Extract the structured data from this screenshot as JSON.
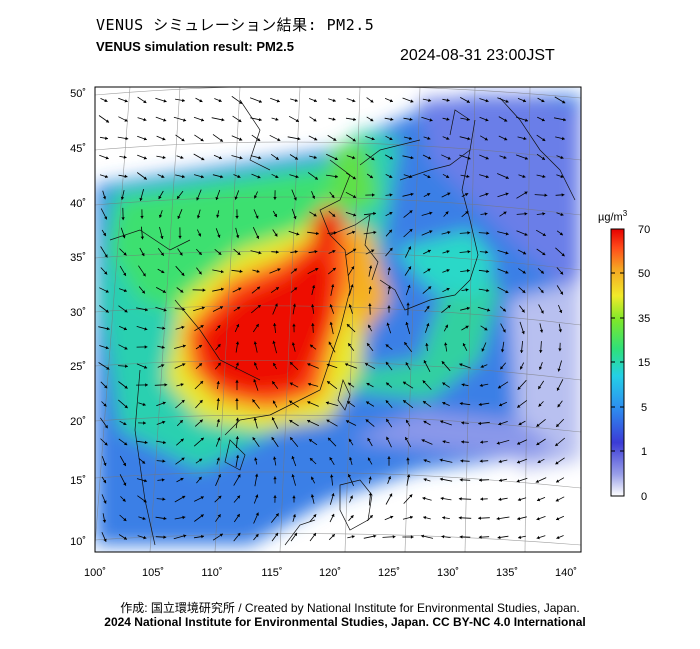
{
  "header": {
    "title_jp": "VENUS シミュレーション結果: PM2.5",
    "title_en": "VENUS simulation result: PM2.5",
    "timestamp": "2024-08-31 23:00JST"
  },
  "map": {
    "lat_labels": [
      "50˚",
      "45˚",
      "40˚",
      "35˚",
      "30˚",
      "25˚",
      "20˚",
      "15˚",
      "10˚"
    ],
    "lon_labels": [
      "100˚",
      "105˚",
      "110˚",
      "115˚",
      "120˚",
      "125˚",
      "130˚",
      "135˚",
      "140˚"
    ],
    "variable": "PM2.5",
    "wind_vectors": "shown"
  },
  "colorbar": {
    "unit": "µg/m",
    "unit_sup": "3",
    "ticks": [
      "70",
      "50",
      "35",
      "15",
      "5",
      "1",
      "0"
    ],
    "colors": [
      "#ffffff",
      "#3b3bd6",
      "#2d8ef0",
      "#24d0e6",
      "#2ee07a",
      "#7ee82a",
      "#f2ea2a",
      "#f5a623",
      "#ff4b1a",
      "#e60000"
    ]
  },
  "footer": {
    "credit": "作成: 国立環境研究所 / Created by National Institute for Environmental Studies, Japan.",
    "copyright": "2024 National Institute for Environmental Studies, Japan. CC BY-NC 4.0 International"
  }
}
